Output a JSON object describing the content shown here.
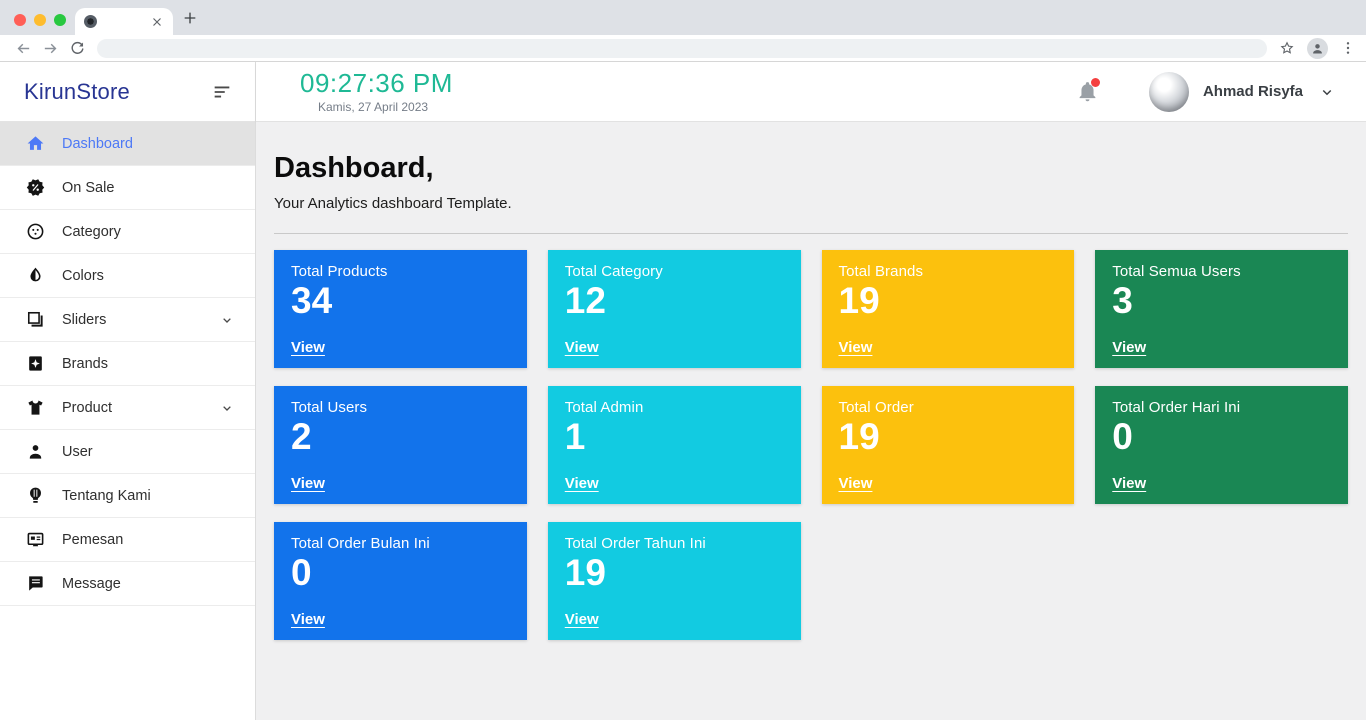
{
  "browser": {
    "tab_title": ""
  },
  "sidebar": {
    "logo": "KirunStore",
    "items": [
      {
        "label": "Dashboard",
        "icon": "home",
        "active": true,
        "expandable": false
      },
      {
        "label": "On Sale",
        "icon": "discount",
        "active": false,
        "expandable": false
      },
      {
        "label": "Category",
        "icon": "category",
        "active": false,
        "expandable": false
      },
      {
        "label": "Colors",
        "icon": "invert-colors",
        "active": false,
        "expandable": false
      },
      {
        "label": "Sliders",
        "icon": "slides",
        "active": false,
        "expandable": true
      },
      {
        "label": "Brands",
        "icon": "brand-badge",
        "active": false,
        "expandable": false
      },
      {
        "label": "Product",
        "icon": "tshirt",
        "active": false,
        "expandable": true
      },
      {
        "label": "User",
        "icon": "person",
        "active": false,
        "expandable": false
      },
      {
        "label": "Tentang Kami",
        "icon": "lightbulb",
        "active": false,
        "expandable": false
      },
      {
        "label": "Pemesan",
        "icon": "card",
        "active": false,
        "expandable": false
      },
      {
        "label": "Message",
        "icon": "chat",
        "active": false,
        "expandable": false
      }
    ]
  },
  "header": {
    "clock": "09:27:36 PM",
    "date": "Kamis, 27 April 2023",
    "user_name": "Ahmad Risyfa",
    "has_notification": true
  },
  "main": {
    "title": "Dashboard,",
    "subtitle": "Your Analytics dashboard Template.",
    "view_label": "View",
    "cards": [
      {
        "label": "Total Products",
        "value": "34",
        "color": "#1273eb"
      },
      {
        "label": "Total Category",
        "value": "12",
        "color": "#12cbe1"
      },
      {
        "label": "Total Brands",
        "value": "19",
        "color": "#fcc10d"
      },
      {
        "label": "Total Semua Users",
        "value": "3",
        "color": "#1a8754"
      },
      {
        "label": "Total Users",
        "value": "2",
        "color": "#1273eb"
      },
      {
        "label": "Total Admin",
        "value": "1",
        "color": "#12cbe1"
      },
      {
        "label": "Total Order",
        "value": "19",
        "color": "#fcc10d"
      },
      {
        "label": "Total Order Hari Ini",
        "value": "0",
        "color": "#1a8754"
      },
      {
        "label": "Total Order Bulan Ini",
        "value": "0",
        "color": "#1273eb"
      },
      {
        "label": "Total Order Tahun Ini",
        "value": "19",
        "color": "#12cbe1"
      }
    ]
  },
  "colors": {
    "clock_accent": "#1fb995",
    "logo": "#283593",
    "active_menu": "#4d79f6",
    "notification_dot": "#f43f3f"
  }
}
